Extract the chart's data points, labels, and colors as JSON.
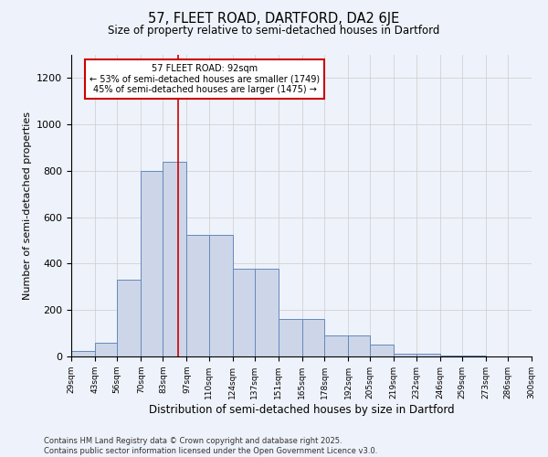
{
  "title1": "57, FLEET ROAD, DARTFORD, DA2 6JE",
  "title2": "Size of property relative to semi-detached houses in Dartford",
  "xlabel": "Distribution of semi-detached houses by size in Dartford",
  "ylabel": "Number of semi-detached properties",
  "property_size": 92,
  "property_label": "57 FLEET ROAD: 92sqm",
  "pct_smaller": 53,
  "count_smaller": 1749,
  "pct_larger": 45,
  "count_larger": 1475,
  "bin_edges": [
    29,
    43,
    56,
    70,
    83,
    97,
    110,
    124,
    137,
    151,
    165,
    178,
    192,
    205,
    219,
    232,
    246,
    259,
    273,
    286,
    300
  ],
  "bin_labels": [
    "29sqm",
    "43sqm",
    "56sqm",
    "70sqm",
    "83sqm",
    "97sqm",
    "110sqm",
    "124sqm",
    "137sqm",
    "151sqm",
    "165sqm",
    "178sqm",
    "192sqm",
    "205sqm",
    "219sqm",
    "232sqm",
    "246sqm",
    "259sqm",
    "273sqm",
    "286sqm",
    "300sqm"
  ],
  "bar_heights": [
    25,
    60,
    330,
    800,
    840,
    525,
    525,
    380,
    380,
    160,
    160,
    90,
    90,
    50,
    13,
    10,
    5,
    2,
    0,
    0
  ],
  "bar_color": "#ccd6e8",
  "bar_edge_color": "#6688bb",
  "vline_color": "#cc0000",
  "annotation_box_color": "#cc0000",
  "grid_color": "#cccccc",
  "background_color": "#eef2fa",
  "footer": "Contains HM Land Registry data © Crown copyright and database right 2025.\nContains public sector information licensed under the Open Government Licence v3.0."
}
